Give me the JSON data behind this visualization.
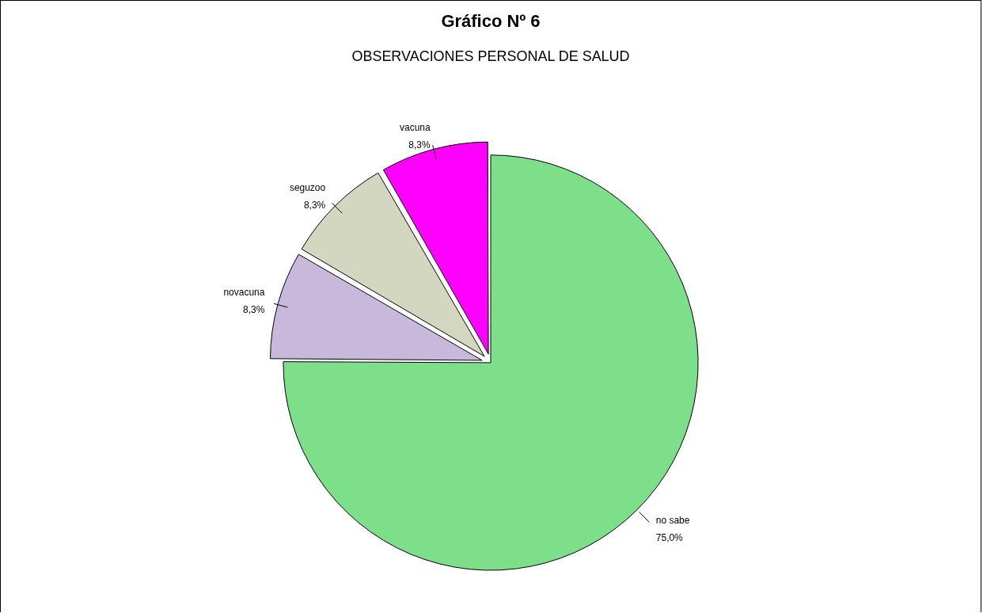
{
  "chart_data": {
    "type": "pie",
    "title": "Gráfico Nº 6",
    "subtitle": "OBSERVACIONES PERSONAL DE SALUD",
    "categories": [
      "no sabe",
      "novacuna",
      "seguzoo",
      "vacuna"
    ],
    "values": [
      75.0,
      8.3,
      8.3,
      8.3
    ],
    "colors": [
      "#7ddf8a",
      "#c8b8dc",
      "#d4d7c0",
      "#ff00ff"
    ],
    "value_labels": [
      "75,0%",
      "8,3%",
      "8,3%",
      "8,3%"
    ],
    "legend": false
  }
}
